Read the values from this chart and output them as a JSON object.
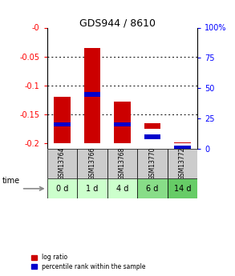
{
  "title": "GDS944 / 8610",
  "samples": [
    "GSM13764",
    "GSM13766",
    "GSM13768",
    "GSM13770",
    "GSM13772"
  ],
  "time_labels": [
    "0 d",
    "1 d",
    "4 d",
    "6 d",
    "14 d"
  ],
  "log_ratio_bottoms": [
    -0.2,
    -0.2,
    -0.2,
    -0.175,
    -0.2
  ],
  "log_ratio_tops": [
    -0.12,
    -0.035,
    -0.128,
    -0.165,
    -0.199
  ],
  "percentile_ranks_pct": [
    20,
    45,
    20,
    10,
    1
  ],
  "bar_color": "#cc0000",
  "blue_color": "#0000cc",
  "ylim_left": [
    -0.21,
    0.0
  ],
  "ylim_right": [
    0,
    100
  ],
  "left_ticks": [
    0.0,
    -0.05,
    -0.1,
    -0.15,
    -0.2
  ],
  "left_tick_labels": [
    "-0",
    "-0.05",
    "-0.1",
    "-0.15",
    "-0.2"
  ],
  "right_ticks": [
    0,
    25,
    50,
    75,
    100
  ],
  "right_tick_labels": [
    "0",
    "25",
    "50",
    "75",
    "100%"
  ],
  "time_row_colors": [
    "#ccffcc",
    "#ccffcc",
    "#ccffcc",
    "#88dd88",
    "#66cc66"
  ],
  "sample_row_color": "#cccccc",
  "bar_width": 0.55
}
